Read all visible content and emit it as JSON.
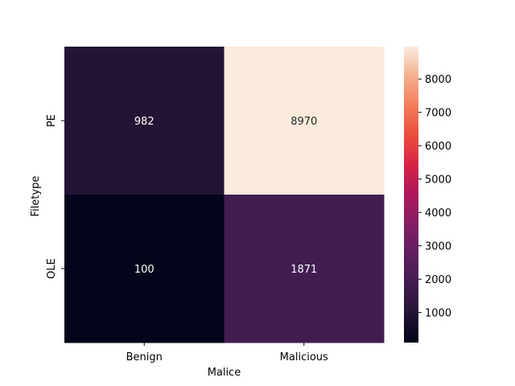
{
  "chart_data": {
    "type": "heatmap",
    "xlabel": "Malice",
    "ylabel": "Filetype",
    "x_categories": [
      "Benign",
      "Malicious"
    ],
    "y_categories": [
      "PE",
      "OLE"
    ],
    "values": [
      [
        982,
        8970
      ],
      [
        100,
        1871
      ]
    ],
    "colorbar": {
      "range": [
        100,
        8970
      ],
      "ticks": [
        1000,
        2000,
        3000,
        4000,
        5000,
        6000,
        7000,
        8000
      ],
      "colormap": "rocket"
    },
    "grid": false,
    "legend": "colorbar-right"
  }
}
